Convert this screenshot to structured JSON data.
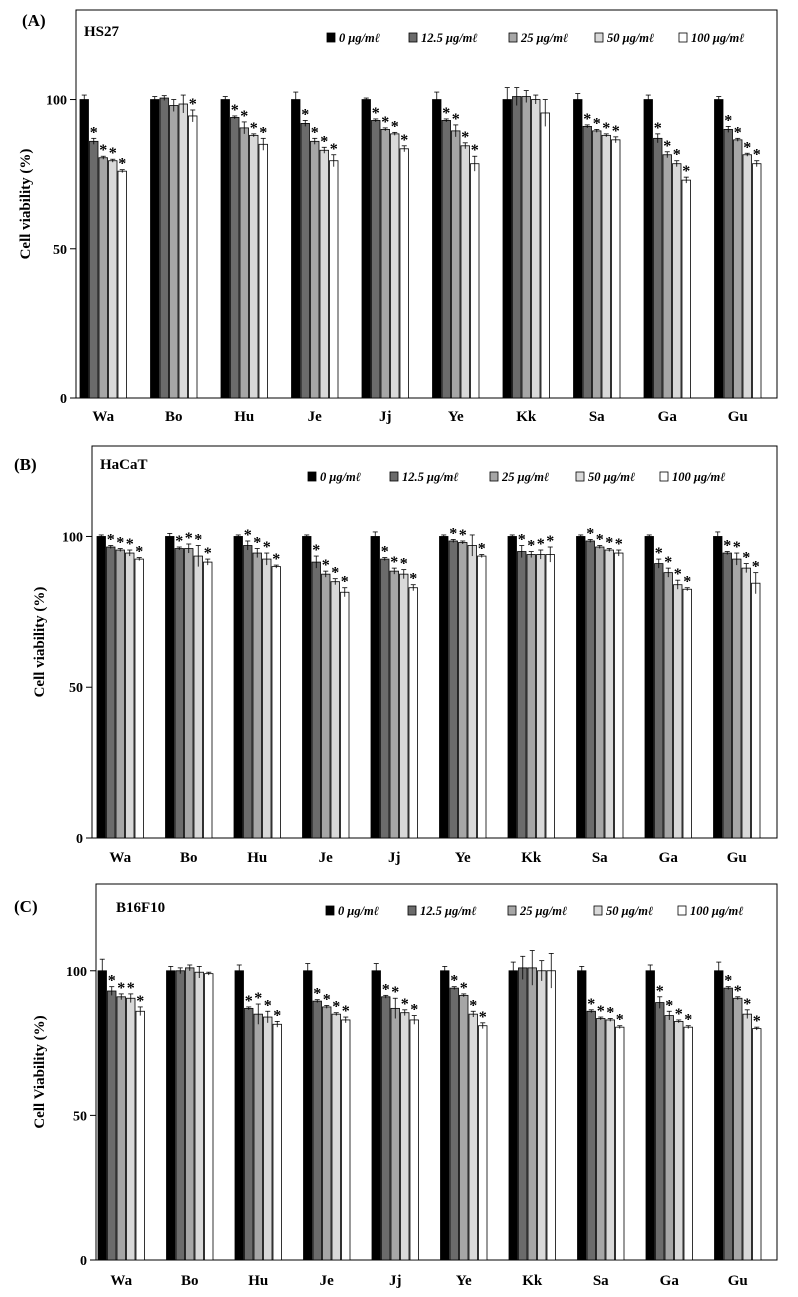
{
  "concentration_labels": [
    "0 μg/mℓ",
    "12.5 μg/mℓ",
    "25 μg/mℓ",
    "50 μg/mℓ",
    "100 μg/mℓ"
  ],
  "series_colors": [
    "#000000",
    "#6b6b6b",
    "#a6a6a6",
    "#d9d9d9",
    "#ffffff"
  ],
  "chart_data": [
    {
      "type": "bar",
      "panel_label": "(A)",
      "title": "HS27",
      "ylabel": "Cell viability (%)",
      "xlabel": "",
      "ylim": [
        0,
        130
      ],
      "yticks": [
        0,
        50,
        100
      ],
      "categories": [
        "Wa",
        "Bo",
        "Hu",
        "Je",
        "Jj",
        "Ye",
        "Kk",
        "Sa",
        "Ga",
        "Gu"
      ],
      "series": [
        {
          "name": "0 μg/mℓ",
          "values": [
            100,
            100,
            100,
            100,
            100,
            100,
            100,
            100,
            100,
            100
          ],
          "errors": [
            1.5,
            1,
            1,
            2.5,
            0.5,
            2.5,
            4,
            2,
            1.5,
            1
          ]
        },
        {
          "name": "12.5 μg/mℓ",
          "values": [
            86,
            100.5,
            94,
            92,
            93,
            93,
            101,
            91,
            87,
            90
          ],
          "errors": [
            1,
            0.8,
            0.5,
            1,
            0.5,
            0.5,
            3,
            0.5,
            1.5,
            1
          ]
        },
        {
          "name": "25 μg/mℓ",
          "values": [
            80.5,
            98,
            90.5,
            86,
            90,
            89.5,
            101,
            89.5,
            81.5,
            86.5
          ],
          "errors": [
            0.5,
            2,
            2,
            1,
            0.5,
            2,
            2,
            0.5,
            1,
            0.5
          ]
        },
        {
          "name": "50 μg/mℓ",
          "values": [
            79.5,
            98.5,
            88,
            83,
            88.5,
            84.5,
            100,
            88,
            78.5,
            81.5
          ],
          "errors": [
            0.5,
            3,
            0.5,
            1,
            0.5,
            1,
            1.5,
            0.5,
            1,
            0.5
          ]
        },
        {
          "name": "100 μg/mℓ",
          "values": [
            76,
            94.5,
            85,
            79.5,
            83.5,
            78.5,
            95.5,
            86.5,
            73,
            78.5
          ],
          "errors": [
            0.5,
            2,
            2,
            2,
            1,
            2.5,
            4.5,
            1,
            1,
            1
          ]
        }
      ],
      "significance": [
        [
          0,
          1,
          1,
          1,
          1
        ],
        [
          0,
          0,
          0,
          0,
          1
        ],
        [
          0,
          1,
          1,
          1,
          1
        ],
        [
          0,
          1,
          1,
          1,
          1
        ],
        [
          0,
          1,
          1,
          1,
          1
        ],
        [
          0,
          1,
          1,
          1,
          1
        ],
        [
          0,
          0,
          0,
          0,
          0
        ],
        [
          0,
          1,
          1,
          1,
          1
        ],
        [
          0,
          1,
          1,
          1,
          1
        ],
        [
          0,
          1,
          1,
          1,
          1
        ]
      ],
      "significance_mark": "*"
    },
    {
      "type": "bar",
      "panel_label": "(B)",
      "title": "HaCaT",
      "ylabel": "Cell viability (%)",
      "xlabel": "",
      "ylim": [
        0,
        130
      ],
      "yticks": [
        0,
        50,
        100
      ],
      "categories": [
        "Wa",
        "Bo",
        "Hu",
        "Je",
        "Jj",
        "Ye",
        "Kk",
        "Sa",
        "Ga",
        "Gu"
      ],
      "series": [
        {
          "name": "0 μg/mℓ",
          "values": [
            100,
            100,
            100,
            100,
            100,
            100,
            100,
            100,
            100,
            100
          ],
          "errors": [
            0.5,
            1,
            0.5,
            0.5,
            1.5,
            0.5,
            0.5,
            0.5,
            0.5,
            1.5
          ]
        },
        {
          "name": "12.5 μg/mℓ",
          "values": [
            96.5,
            96,
            97,
            91.5,
            92.5,
            98.5,
            95,
            98.5,
            91,
            94.5
          ],
          "errors": [
            0.5,
            0.5,
            1.5,
            2,
            0.5,
            0.5,
            2,
            0.5,
            1.5,
            0.5
          ]
        },
        {
          "name": "25 μg/mℓ",
          "values": [
            95.5,
            96,
            94.5,
            87.5,
            88.5,
            98,
            94,
            96.5,
            88,
            92.5
          ],
          "errors": [
            0.5,
            1.5,
            1.5,
            1,
            1,
            0.5,
            1,
            0.5,
            1.5,
            2
          ]
        },
        {
          "name": "50 μg/mℓ",
          "values": [
            94.5,
            93.5,
            92.5,
            85,
            87.5,
            97,
            94,
            95.5,
            84,
            89.5
          ],
          "errors": [
            1,
            3.5,
            2,
            1,
            1.5,
            3.5,
            1.5,
            0.5,
            1.5,
            1.5
          ]
        },
        {
          "name": "100 μg/mℓ",
          "values": [
            92.5,
            91.5,
            90,
            81.5,
            83,
            93.5,
            94,
            94.5,
            82.5,
            84.5
          ],
          "errors": [
            0.5,
            1,
            0.5,
            1.5,
            1,
            0.5,
            2.5,
            1,
            0.5,
            3.5
          ]
        }
      ],
      "significance": [
        [
          0,
          1,
          1,
          1,
          1
        ],
        [
          0,
          1,
          1,
          1,
          1
        ],
        [
          0,
          1,
          1,
          1,
          1
        ],
        [
          0,
          1,
          1,
          1,
          1
        ],
        [
          0,
          1,
          1,
          1,
          1
        ],
        [
          0,
          1,
          1,
          0,
          1
        ],
        [
          0,
          1,
          1,
          1,
          1
        ],
        [
          0,
          1,
          1,
          1,
          1
        ],
        [
          0,
          1,
          1,
          1,
          1
        ],
        [
          0,
          1,
          1,
          1,
          1
        ]
      ],
      "significance_mark": "*"
    },
    {
      "type": "bar",
      "panel_label": "(C)",
      "title": "B16F10",
      "ylabel": "Cell Viability (%)",
      "xlabel": "",
      "ylim": [
        0,
        130
      ],
      "yticks": [
        0,
        50,
        100
      ],
      "categories": [
        "Wa",
        "Bo",
        "Hu",
        "Je",
        "Jj",
        "Ye",
        "Kk",
        "Sa",
        "Ga",
        "Gu"
      ],
      "series": [
        {
          "name": "0 μg/mℓ",
          "values": [
            100,
            100,
            100,
            100,
            100,
            100,
            100,
            100,
            100,
            100
          ],
          "errors": [
            4,
            1.5,
            2,
            2.5,
            2.5,
            1.5,
            3,
            1.5,
            2,
            3
          ]
        },
        {
          "name": "12.5 μg/mℓ",
          "values": [
            93,
            100,
            87,
            89.5,
            91,
            94,
            101,
            86,
            89,
            94
          ],
          "errors": [
            1.5,
            1,
            0.5,
            0.5,
            0.5,
            0.5,
            4,
            0.5,
            2,
            0.5
          ]
        },
        {
          "name": "25 μg/mℓ",
          "values": [
            91,
            101,
            85,
            87.5,
            87,
            91.5,
            101,
            83.5,
            84.5,
            90.5
          ],
          "errors": [
            1,
            1,
            3.5,
            0.5,
            3.5,
            0.5,
            6,
            0.5,
            1.5,
            0.5
          ]
        },
        {
          "name": "50 μg/mℓ",
          "values": [
            90.5,
            99.5,
            84,
            85,
            85.5,
            85,
            100,
            83,
            82.5,
            85
          ],
          "errors": [
            1.5,
            2,
            2,
            0.5,
            1,
            1,
            3.5,
            0.5,
            0.5,
            1.5
          ]
        },
        {
          "name": "100 μg/mℓ",
          "values": [
            86,
            99,
            81.5,
            83,
            83,
            81,
            100,
            80.5,
            80.5,
            80
          ],
          "errors": [
            1.5,
            0.5,
            1,
            1,
            1.5,
            1,
            6,
            0.5,
            0.5,
            0.5
          ]
        }
      ],
      "significance": [
        [
          0,
          1,
          1,
          1,
          1
        ],
        [
          0,
          0,
          0,
          0,
          0
        ],
        [
          0,
          1,
          1,
          1,
          1
        ],
        [
          0,
          1,
          1,
          1,
          1
        ],
        [
          0,
          1,
          1,
          1,
          1
        ],
        [
          0,
          1,
          1,
          1,
          1
        ],
        [
          0,
          0,
          0,
          0,
          0
        ],
        [
          0,
          1,
          1,
          1,
          1
        ],
        [
          0,
          1,
          1,
          1,
          1
        ],
        [
          0,
          1,
          1,
          1,
          1
        ]
      ],
      "significance_mark": "*"
    }
  ]
}
